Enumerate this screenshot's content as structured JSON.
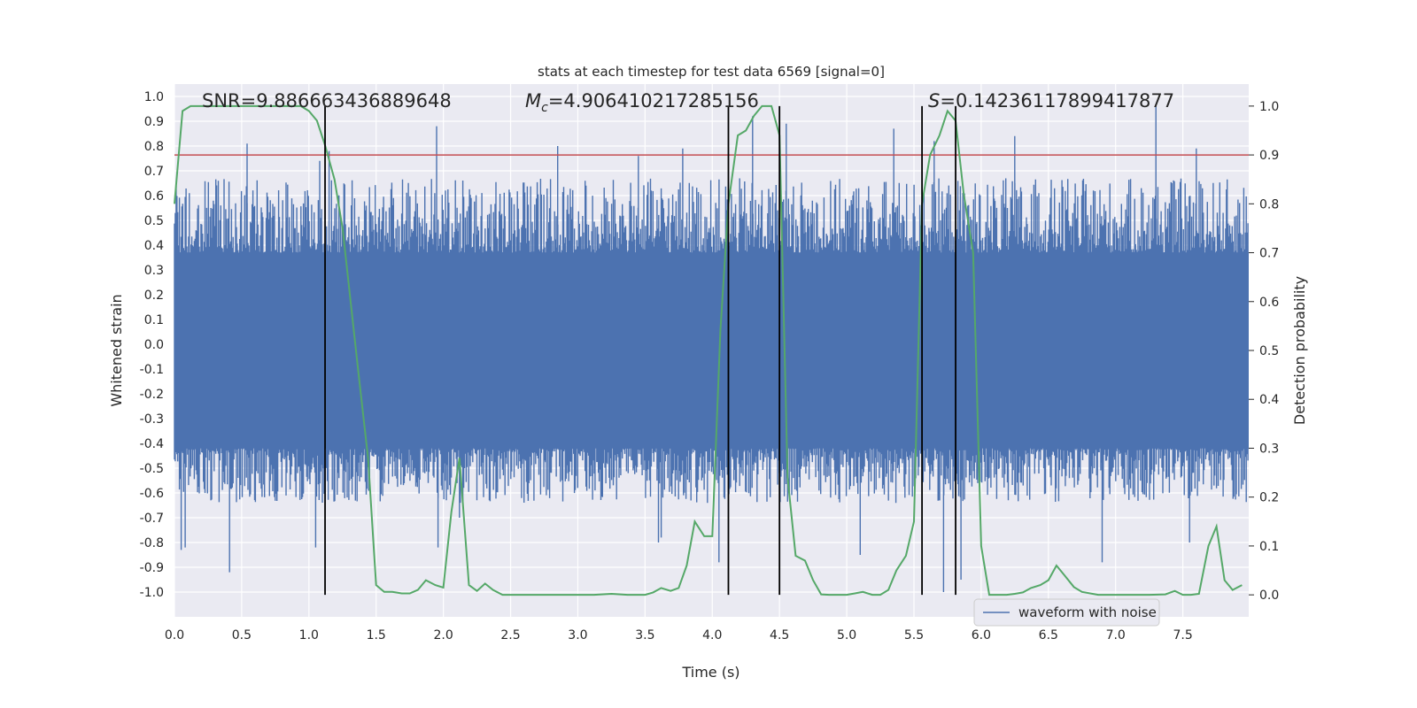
{
  "chart_data": {
    "type": "line",
    "title": "stats at each timestep for test data 6569 [signal=0]",
    "xlabel": "Time (s)",
    "ylabel": "Whitened strain",
    "y2label": "Detection probability",
    "xlim": [
      0.0,
      7.99
    ],
    "ylim": [
      -1.1,
      1.05
    ],
    "y2lim": [
      -0.045,
      1.045
    ],
    "xticks": [
      "0.0",
      "0.5",
      "1.0",
      "1.5",
      "2.0",
      "2.5",
      "3.0",
      "3.5",
      "4.0",
      "4.5",
      "5.0",
      "5.5",
      "6.0",
      "6.5",
      "7.0",
      "7.5"
    ],
    "xtick_values": [
      0.0,
      0.5,
      1.0,
      1.5,
      2.0,
      2.5,
      3.0,
      3.5,
      4.0,
      4.5,
      5.0,
      5.5,
      6.0,
      6.5,
      7.0,
      7.5
    ],
    "yticks": [
      "1.0",
      "0.9",
      "0.8",
      "0.7",
      "0.6",
      "0.5",
      "0.4",
      "0.3",
      "0.2",
      "0.1",
      "0.0",
      "-0.1",
      "-0.2",
      "-0.3",
      "-0.4",
      "-0.5",
      "-0.6",
      "-0.7",
      "-0.8",
      "-0.9",
      "-1.0"
    ],
    "ytick_values": [
      1.0,
      0.9,
      0.8,
      0.7,
      0.6,
      0.5,
      0.4,
      0.3,
      0.2,
      0.1,
      0.0,
      -0.1,
      -0.2,
      -0.3,
      -0.4,
      -0.5,
      -0.6,
      -0.7,
      -0.8,
      -0.9,
      -1.0
    ],
    "y2ticks": [
      "1.0",
      "0.9",
      "0.8",
      "0.7",
      "0.6",
      "0.5",
      "0.4",
      "0.3",
      "0.2",
      "0.1",
      "0.0"
    ],
    "y2tick_values": [
      1.0,
      0.9,
      0.8,
      0.7,
      0.6,
      0.5,
      0.4,
      0.3,
      0.2,
      0.1,
      0.0
    ],
    "annotations": {
      "snr": "SNR=9.886663436889648",
      "mc_symbol": "M",
      "mc_sub": "c",
      "mc_value": "=4.906410217285156",
      "s_symbol": "S",
      "s_value": "=0.14236117899417877"
    },
    "legend": {
      "label": "waveform with noise",
      "position": "lower-right"
    },
    "colors": {
      "waveform": "#4c72b0",
      "probability": "#55a868",
      "threshold": "#c44e52",
      "markers": "#000000",
      "background": "#eaeaf2",
      "grid": "#ffffff"
    },
    "threshold": 0.9,
    "vertical_lines_s": [
      1.12,
      4.12,
      4.5,
      5.56,
      5.81
    ],
    "waveform": {
      "name": "waveform with noise",
      "core_band": [
        -0.42,
        0.37
      ],
      "typical_extent": [
        -0.62,
        0.65
      ],
      "spikes": [
        [
          0.54,
          0.81
        ],
        [
          1.08,
          0.74
        ],
        [
          1.15,
          0.78
        ],
        [
          1.95,
          0.88
        ],
        [
          2.85,
          0.8
        ],
        [
          3.45,
          0.76
        ],
        [
          3.78,
          0.79
        ],
        [
          4.3,
          0.92
        ],
        [
          4.55,
          0.89
        ],
        [
          5.35,
          0.87
        ],
        [
          5.65,
          0.82
        ],
        [
          6.25,
          0.84
        ],
        [
          7.3,
          0.96
        ],
        [
          7.6,
          0.79
        ],
        [
          0.05,
          -0.83
        ],
        [
          0.08,
          -0.82
        ],
        [
          0.41,
          -0.92
        ],
        [
          1.05,
          -0.82
        ],
        [
          1.96,
          -0.82
        ],
        [
          2.12,
          -0.7
        ],
        [
          3.6,
          -0.8
        ],
        [
          3.62,
          -0.78
        ],
        [
          4.05,
          -0.88
        ],
        [
          5.1,
          -0.85
        ],
        [
          5.72,
          -1.0
        ],
        [
          5.85,
          -0.95
        ],
        [
          6.9,
          -0.88
        ],
        [
          7.55,
          -0.8
        ]
      ]
    },
    "series": [
      {
        "name": "detection probability",
        "axis": "right",
        "x": [
          0.0,
          0.06,
          0.12,
          0.19,
          0.25,
          0.31,
          0.37,
          0.44,
          0.5,
          0.56,
          0.62,
          0.69,
          0.75,
          0.81,
          0.87,
          0.94,
          1.0,
          1.06,
          1.12,
          1.19,
          1.25,
          1.31,
          1.37,
          1.44,
          1.5,
          1.56,
          1.62,
          1.69,
          1.75,
          1.81,
          1.87,
          1.94,
          2.0,
          2.06,
          2.12,
          2.19,
          2.25,
          2.31,
          2.37,
          2.44,
          2.5,
          2.62,
          2.75,
          2.87,
          3.0,
          3.12,
          3.25,
          3.37,
          3.5,
          3.56,
          3.62,
          3.69,
          3.75,
          3.81,
          3.87,
          3.94,
          4.0,
          4.06,
          4.12,
          4.19,
          4.25,
          4.31,
          4.37,
          4.44,
          4.5,
          4.56,
          4.62,
          4.69,
          4.75,
          4.81,
          4.87,
          4.94,
          5.0,
          5.06,
          5.12,
          5.19,
          5.25,
          5.31,
          5.37,
          5.44,
          5.5,
          5.56,
          5.62,
          5.69,
          5.75,
          5.81,
          5.87,
          5.94,
          6.0,
          6.06,
          6.12,
          6.19,
          6.25,
          6.31,
          6.37,
          6.44,
          6.5,
          6.56,
          6.62,
          6.69,
          6.75,
          6.87,
          7.0,
          7.12,
          7.25,
          7.37,
          7.44,
          7.5,
          7.56,
          7.62,
          7.69,
          7.75,
          7.81,
          7.87,
          7.94
        ],
        "y": [
          0.8,
          0.99,
          1.0,
          1.0,
          1.0,
          1.0,
          1.0,
          1.0,
          1.0,
          1.0,
          1.0,
          1.0,
          1.0,
          1.0,
          1.0,
          1.0,
          0.99,
          0.97,
          0.92,
          0.85,
          0.75,
          0.6,
          0.45,
          0.28,
          0.02,
          0.006,
          0.006,
          0.003,
          0.003,
          0.01,
          0.03,
          0.02,
          0.015,
          0.17,
          0.28,
          0.02,
          0.008,
          0.023,
          0.01,
          0.0,
          0.0,
          0.0,
          0.0,
          0.0,
          0.0,
          0.0,
          0.002,
          0.0,
          0.0,
          0.005,
          0.014,
          0.008,
          0.014,
          0.06,
          0.15,
          0.12,
          0.12,
          0.54,
          0.8,
          0.94,
          0.95,
          0.98,
          1.0,
          1.0,
          0.94,
          0.24,
          0.08,
          0.07,
          0.03,
          0.001,
          0.0,
          0.0,
          0.0,
          0.003,
          0.006,
          0.0,
          0.0,
          0.01,
          0.05,
          0.08,
          0.15,
          0.8,
          0.9,
          0.94,
          0.99,
          0.97,
          0.82,
          0.7,
          0.1,
          0.0,
          0.0,
          0.0,
          0.002,
          0.005,
          0.014,
          0.02,
          0.03,
          0.06,
          0.04,
          0.016,
          0.006,
          0.0,
          0.0,
          0.0,
          0.0,
          0.001,
          0.008,
          0.0,
          0.0,
          0.002,
          0.1,
          0.14,
          0.03,
          0.01,
          0.02
        ]
      }
    ]
  }
}
